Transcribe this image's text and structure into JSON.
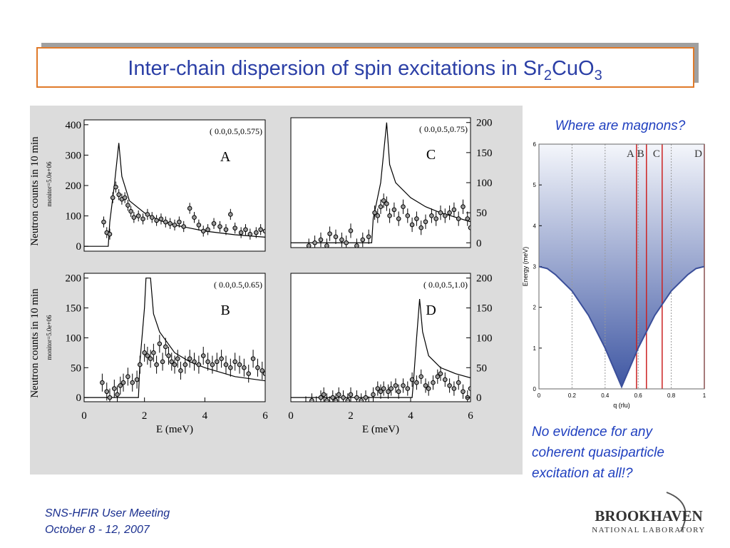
{
  "title": [
    "Inter-chain dispersion of spin excitations in Sr",
    "2",
    "CuO",
    "3"
  ],
  "question": "Where are magnons?",
  "conclusion": [
    "No evidence for any",
    "coherent quasiparticle",
    "excitation at all!?"
  ],
  "footer": [
    "SNS-HFIR User Meeting",
    "October 8 - 12, 2007"
  ],
  "logo": [
    "BROOKHAVEN",
    "NATIONAL LABORATORY"
  ],
  "chart_data": [
    {
      "type": "scatter",
      "q": "( 0.0,0.5,0.575)",
      "label": "A",
      "ylabel": "Neutron counts in 10 min",
      "monitor": "monitor=5.0e+06",
      "yaxis_side": "left",
      "xlim": [
        0,
        6
      ],
      "ylim": [
        -16,
        416
      ],
      "yticks": [
        0,
        100,
        200,
        300,
        400
      ],
      "error": 18,
      "x": [
        0.65,
        0.75,
        0.85,
        0.95,
        1.05,
        1.15,
        1.25,
        1.35,
        1.45,
        1.55,
        1.65,
        1.8,
        1.95,
        2.1,
        2.25,
        2.4,
        2.55,
        2.7,
        2.85,
        3.0,
        3.15,
        3.3,
        3.5,
        3.65,
        3.8,
        3.95,
        4.1,
        4.3,
        4.5,
        4.7,
        4.85,
        5.0,
        5.2,
        5.35,
        5.5,
        5.7,
        5.85,
        6.0
      ],
      "values": [
        80,
        45,
        40,
        160,
        195,
        170,
        155,
        160,
        135,
        115,
        95,
        100,
        90,
        105,
        95,
        85,
        90,
        80,
        75,
        70,
        80,
        65,
        125,
        95,
        70,
        50,
        55,
        75,
        65,
        55,
        105,
        60,
        45,
        55,
        40,
        45,
        55,
        50
      ],
      "fit": {
        "x": [
          0,
          0.8,
          0.85,
          1.0,
          1.15,
          1.25,
          1.5,
          2,
          2.5,
          3,
          4,
          5,
          6
        ],
        "y": [
          0,
          0,
          80,
          200,
          340,
          230,
          150,
          110,
          85,
          70,
          50,
          38,
          30
        ]
      }
    },
    {
      "type": "scatter",
      "q": "( 0.0,0.5,0.75)",
      "label": "C",
      "yaxis_side": "right",
      "xlim": [
        0,
        6
      ],
      "ylim": [
        -8,
        208
      ],
      "yticks": [
        0,
        50,
        100,
        150,
        200
      ],
      "error": 12,
      "x": [
        0.6,
        0.8,
        1.0,
        1.2,
        1.3,
        1.5,
        1.7,
        1.85,
        2.0,
        2.2,
        2.4,
        2.6,
        2.8,
        2.9,
        3.0,
        3.1,
        3.2,
        3.3,
        3.45,
        3.6,
        3.75,
        3.9,
        4.05,
        4.2,
        4.35,
        4.5,
        4.7,
        4.85,
        5.0,
        5.15,
        5.3,
        5.45,
        5.6,
        5.75,
        5.9,
        6.0
      ],
      "values": [
        -5,
        0,
        5,
        -5,
        15,
        10,
        5,
        0,
        20,
        -5,
        5,
        10,
        50,
        45,
        60,
        70,
        65,
        45,
        55,
        40,
        60,
        45,
        30,
        40,
        25,
        35,
        45,
        40,
        50,
        45,
        50,
        55,
        40,
        60,
        40,
        25
      ],
      "fit": {
        "x": [
          0,
          2.7,
          2.75,
          3.0,
          3.1,
          3.2,
          3.3,
          3.5,
          4,
          4.5,
          5,
          6
        ],
        "y": [
          0,
          0,
          40,
          100,
          150,
          200,
          130,
          100,
          75,
          60,
          50,
          35
        ]
      }
    },
    {
      "type": "scatter",
      "q": "( 0.0,0.5,0.65)",
      "label": "B",
      "ylabel": "Neutron counts in 10 min",
      "monitor": "monitor=5.0e+06",
      "xlabel": "E (meV)",
      "yaxis_side": "left",
      "xlim": [
        0,
        6
      ],
      "ylim": [
        -7,
        208
      ],
      "xticks": [
        0,
        2,
        4,
        6
      ],
      "yticks": [
        0,
        50,
        100,
        150,
        200
      ],
      "error": 15,
      "x": [
        0.6,
        0.75,
        0.85,
        1.0,
        1.1,
        1.2,
        1.3,
        1.45,
        1.6,
        1.75,
        1.85,
        2.0,
        2.1,
        2.2,
        2.3,
        2.4,
        2.5,
        2.6,
        2.7,
        2.8,
        2.9,
        3.0,
        3.1,
        3.2,
        3.35,
        3.5,
        3.65,
        3.8,
        3.95,
        4.1,
        4.25,
        4.4,
        4.55,
        4.7,
        4.85,
        5.0,
        5.15,
        5.3,
        5.45,
        5.6,
        5.75,
        5.9,
        6.0
      ],
      "values": [
        25,
        10,
        0,
        15,
        5,
        20,
        25,
        35,
        25,
        30,
        55,
        75,
        70,
        65,
        75,
        55,
        90,
        60,
        85,
        70,
        60,
        55,
        65,
        45,
        55,
        65,
        60,
        55,
        70,
        60,
        55,
        60,
        65,
        55,
        50,
        60,
        55,
        50,
        40,
        65,
        50,
        45,
        40
      ],
      "fit": {
        "x": [
          0,
          1.8,
          1.85,
          2.0,
          2.05,
          2.2,
          2.3,
          2.5,
          3,
          3.5,
          4,
          5,
          6
        ],
        "y": [
          0,
          0,
          60,
          150,
          200,
          200,
          140,
          110,
          75,
          60,
          50,
          35,
          28
        ]
      }
    },
    {
      "type": "scatter",
      "q": "( 0.0,0.5,1.0)",
      "label": "D",
      "xlabel": "E (meV)",
      "yaxis_side": "right",
      "xlim": [
        0,
        6
      ],
      "ylim": [
        -7,
        208
      ],
      "xticks": [
        0,
        2,
        4,
        6
      ],
      "yticks": [
        0,
        50,
        100,
        150,
        200
      ],
      "error": 12,
      "x": [
        0.5,
        0.7,
        0.85,
        1.0,
        1.1,
        1.2,
        1.3,
        1.4,
        1.5,
        1.6,
        1.75,
        1.9,
        2.0,
        2.2,
        2.35,
        2.5,
        2.6,
        2.75,
        2.9,
        3.0,
        3.1,
        3.25,
        3.35,
        3.5,
        3.6,
        3.75,
        3.9,
        4.05,
        4.2,
        4.35,
        4.5,
        4.6,
        4.75,
        4.9,
        5.0,
        5.15,
        5.3,
        5.45,
        5.6,
        5.75,
        5.9,
        6.0
      ],
      "values": [
        -10,
        -5,
        -10,
        0,
        5,
        -5,
        -10,
        0,
        -5,
        5,
        0,
        -5,
        5,
        0,
        -5,
        0,
        -10,
        5,
        15,
        10,
        15,
        10,
        15,
        20,
        10,
        20,
        15,
        30,
        25,
        35,
        20,
        15,
        25,
        35,
        40,
        30,
        20,
        15,
        25,
        10,
        0,
        15
      ],
      "fit": {
        "x": [
          0,
          4.05,
          4.1,
          4.2,
          4.3,
          4.4,
          4.6,
          5,
          5.5,
          6
        ],
        "y": [
          0,
          0,
          30,
          100,
          165,
          110,
          70,
          50,
          40,
          33
        ]
      }
    },
    {
      "type": "area",
      "xlabel": "q (rlu)",
      "ylabel": "Energy (meV)",
      "grid": true,
      "color": "#3b4f9a",
      "xlim": [
        0,
        1
      ],
      "ylim": [
        0,
        6
      ],
      "xticks": [
        0,
        0.2,
        0.4,
        0.6,
        0.8,
        1
      ],
      "yticks": [
        0,
        1,
        2,
        3,
        4,
        5,
        6
      ],
      "x": [
        0,
        0.05,
        0.1,
        0.2,
        0.3,
        0.4,
        0.5,
        0.6,
        0.7,
        0.8,
        0.9,
        0.95,
        1
      ],
      "values": [
        3,
        2.95,
        2.8,
        2.4,
        1.8,
        1.0,
        0.05,
        1.0,
        1.8,
        2.4,
        2.8,
        2.95,
        3
      ],
      "markers": {
        "x": [
          0.59,
          0.65,
          0.745,
          1
        ],
        "labels": [
          "A",
          "B",
          "C",
          "D"
        ],
        "color": "#cc2222"
      }
    }
  ]
}
